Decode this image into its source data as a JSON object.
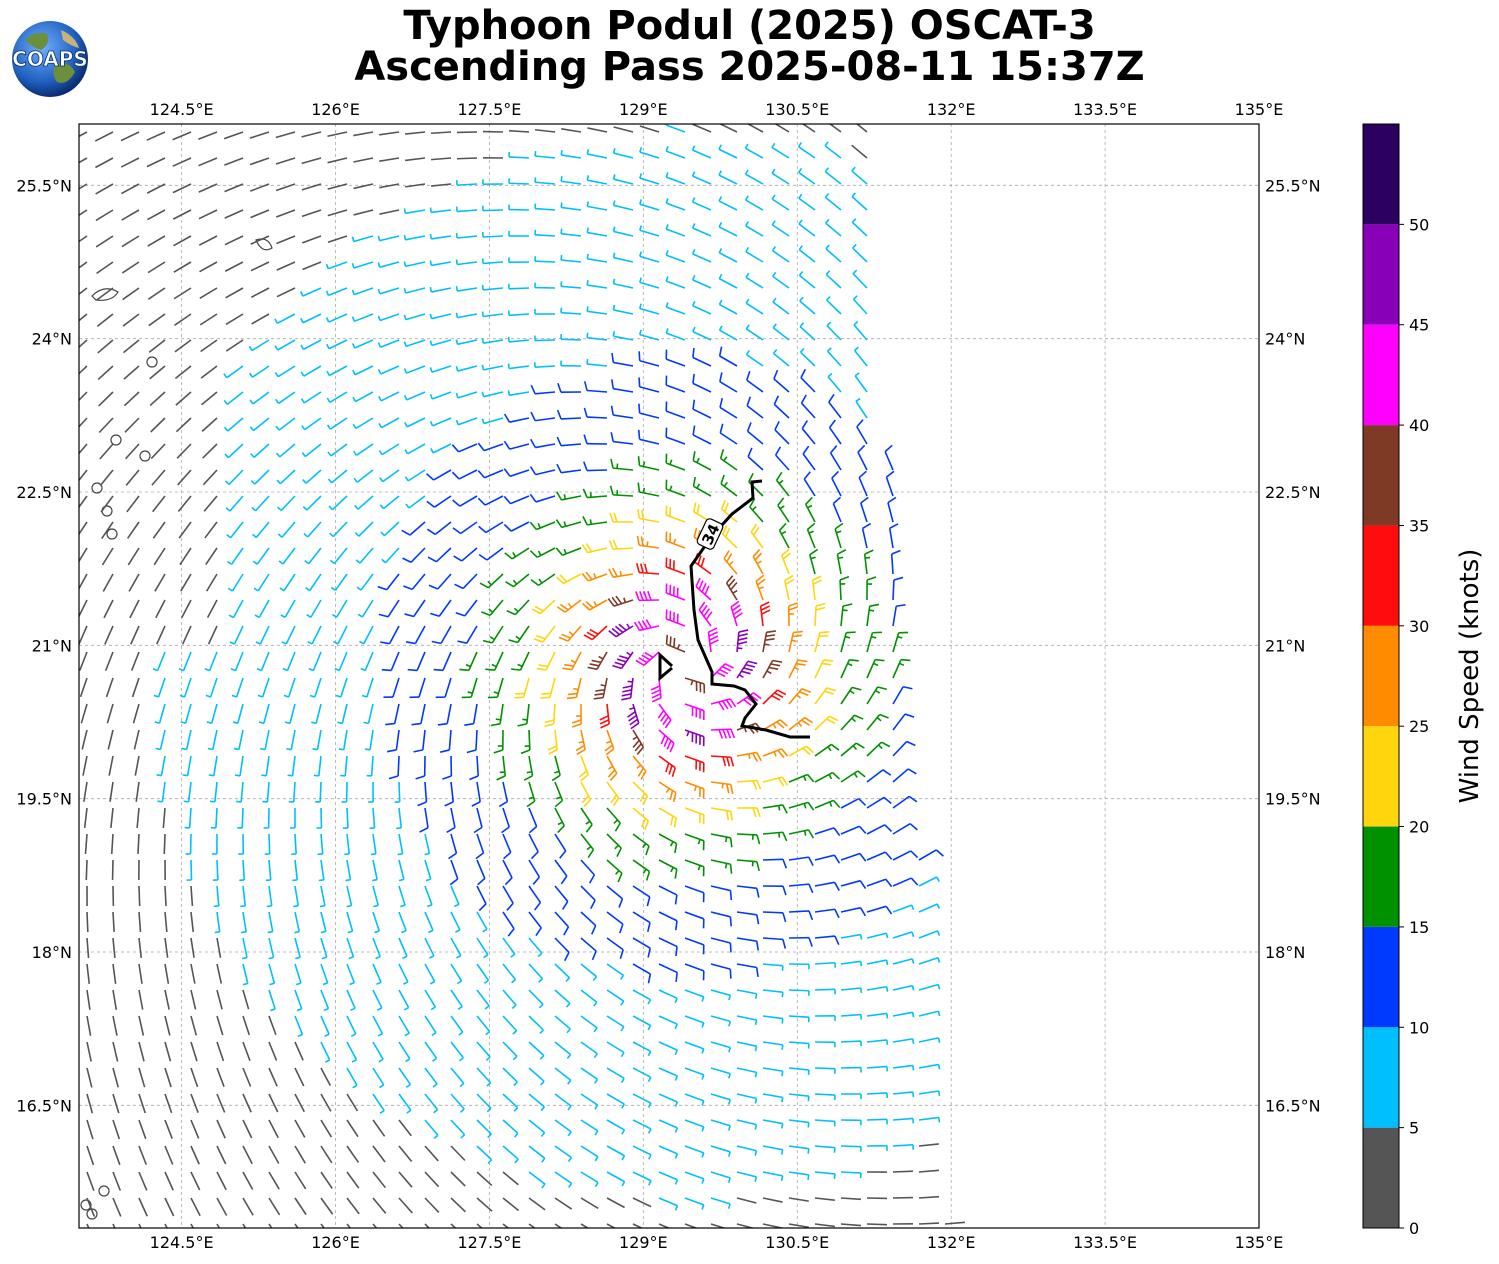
{
  "title": {
    "line1": "Typhoon Podul (2025) OSCAT-3",
    "line2": "Ascending Pass 2025-08-11 15:37Z"
  },
  "logo": {
    "text": "COAPS"
  },
  "map": {
    "lon_range": [
      123.5,
      135.0
    ],
    "lat_range": [
      15.3,
      26.1
    ],
    "lon_ticks": [
      "124.5°E",
      "126°E",
      "127.5°E",
      "129°E",
      "130.5°E",
      "132°E",
      "133.5°E",
      "135°E"
    ],
    "lat_ticks": [
      "25.5°N",
      "24°N",
      "22.5°N",
      "21°N",
      "19.5°N",
      "18°N",
      "16.5°N"
    ],
    "gridlines": true,
    "storm_center": {
      "lon": 129.4,
      "lat": 20.8
    },
    "swath_east_edge_lon": 131.2,
    "wind_radius_label": "34"
  },
  "colorbar": {
    "label": "Wind Speed (knots)",
    "ticks": [
      "0",
      "5",
      "10",
      "15",
      "20",
      "25",
      "30",
      "35",
      "40",
      "45",
      "50"
    ],
    "bins": [
      {
        "min": 0,
        "max": 5,
        "color": "#555555"
      },
      {
        "min": 5,
        "max": 10,
        "color": "#00bfff"
      },
      {
        "min": 10,
        "max": 15,
        "color": "#0039ff"
      },
      {
        "min": 15,
        "max": 20,
        "color": "#009100"
      },
      {
        "min": 20,
        "max": 25,
        "color": "#ffd60d"
      },
      {
        "min": 25,
        "max": 30,
        "color": "#ff8c00"
      },
      {
        "min": 30,
        "max": 35,
        "color": "#ff0d0d"
      },
      {
        "min": 35,
        "max": 40,
        "color": "#7f3a26"
      },
      {
        "min": 40,
        "max": 45,
        "color": "#ff00ff"
      },
      {
        "min": 45,
        "max": 50,
        "color": "#8800b8"
      },
      {
        "min": 50,
        "max": 55,
        "color": "#2b005e"
      }
    ]
  }
}
